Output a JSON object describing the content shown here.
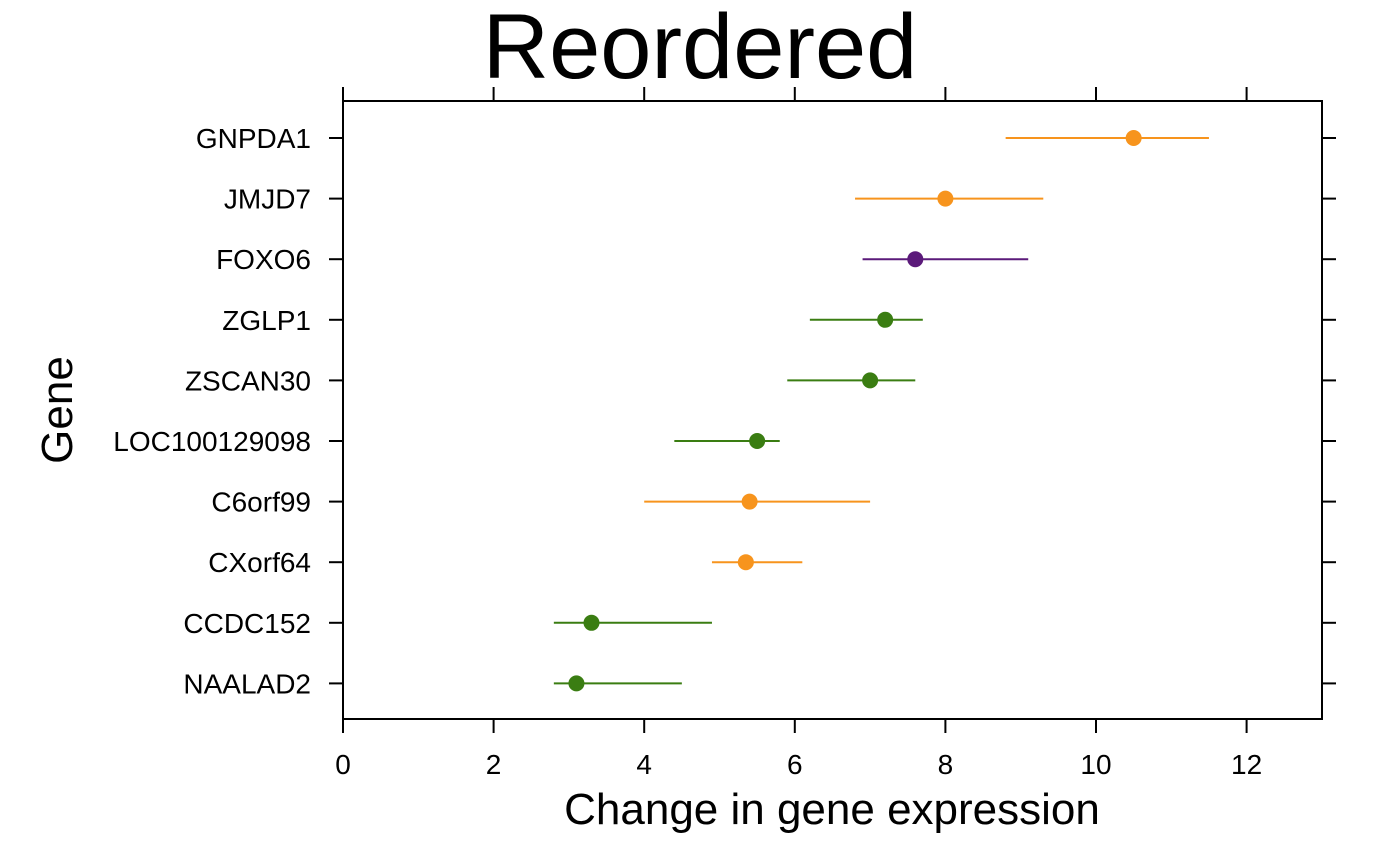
{
  "chart_data": {
    "type": "dotplot",
    "title": "Reordered",
    "xlabel": "Change in gene expression",
    "ylabel": "Gene",
    "xlim": [
      0,
      13
    ],
    "xticks": [
      0,
      2,
      4,
      6,
      8,
      10,
      12
    ],
    "grid": false,
    "legend": "none",
    "categories": [
      "GNPDA1",
      "JMJD7",
      "FOXO6",
      "ZGLP1",
      "ZSCAN30",
      "LOC100129098",
      "C6orf99",
      "CXorf64",
      "CCDC152",
      "NAALAD2"
    ],
    "values": [
      10.5,
      8.0,
      7.6,
      7.2,
      7.0,
      5.5,
      5.4,
      5.35,
      3.3,
      3.1
    ],
    "lower": [
      8.8,
      6.8,
      6.9,
      6.2,
      5.9,
      4.4,
      4.0,
      4.9,
      2.8,
      2.8
    ],
    "upper": [
      11.5,
      9.3,
      9.1,
      7.7,
      7.6,
      5.8,
      7.0,
      6.1,
      4.9,
      4.5
    ],
    "colors": [
      "#F7941D",
      "#F7941D",
      "#5B1A7A",
      "#3A7D12",
      "#3A7D12",
      "#3A7D12",
      "#F7941D",
      "#F7941D",
      "#3A7D12",
      "#3A7D12"
    ]
  }
}
